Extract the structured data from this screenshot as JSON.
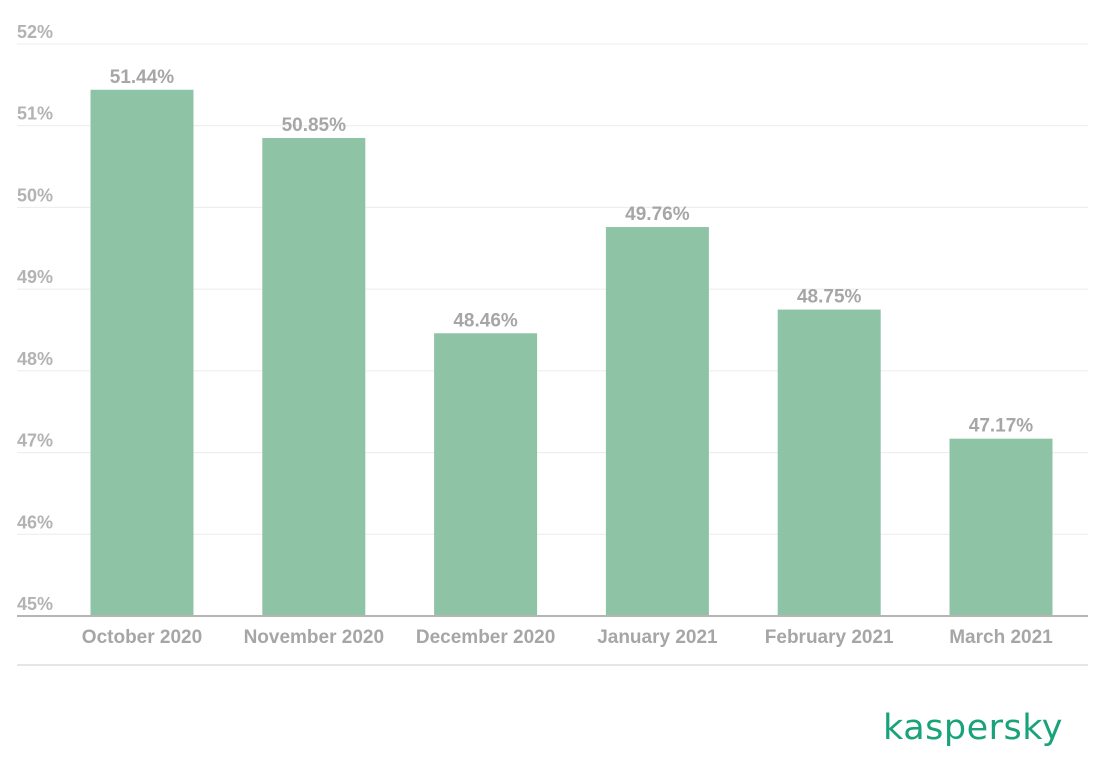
{
  "colors": {
    "bar": "#8fc3a6",
    "brand": "#1aa37a",
    "text": "#a6a6a6"
  },
  "chart_data": {
    "type": "bar",
    "title": "",
    "xlabel": "",
    "ylabel": "",
    "categories": [
      "October 2020",
      "November 2020",
      "December 2020",
      "January 2021",
      "February 2021",
      "March 2021"
    ],
    "values": [
      51.44,
      50.85,
      48.46,
      49.76,
      48.75,
      47.17
    ],
    "value_labels": [
      "51.44%",
      "50.85%",
      "48.46%",
      "49.76%",
      "48.75%",
      "47.17%"
    ],
    "ylim": [
      45,
      52
    ],
    "yticks": [
      45,
      46,
      47,
      48,
      49,
      50,
      51,
      52
    ],
    "ytick_labels": [
      "45%",
      "46%",
      "47%",
      "48%",
      "49%",
      "50%",
      "51%",
      "52%"
    ],
    "grid": true,
    "legend": "none"
  },
  "brand": {
    "logo_text": "kaspersky"
  }
}
